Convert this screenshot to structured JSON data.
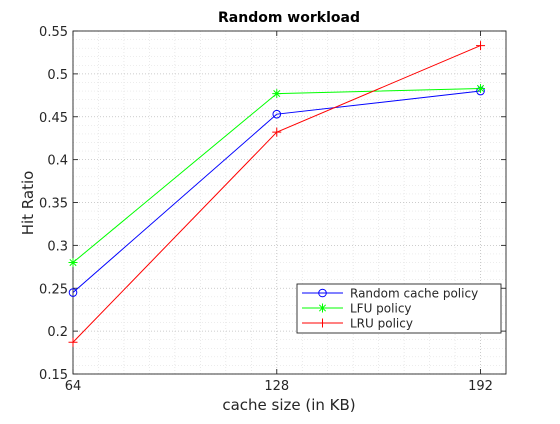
{
  "chart_data": {
    "type": "line",
    "title": "Random workload",
    "xlabel": "cache size (in KB)",
    "ylabel": "Hit Ratio",
    "x": [
      64,
      128,
      192
    ],
    "xlim": [
      64,
      200
    ],
    "ylim": [
      0.15,
      0.55
    ],
    "x_ticks": [
      64,
      128,
      192
    ],
    "x_tick_labels": [
      "64",
      "128",
      "192"
    ],
    "y_ticks": [
      0.15,
      0.2,
      0.25,
      0.3,
      0.35,
      0.4,
      0.45,
      0.5,
      0.55
    ],
    "y_tick_labels": [
      "0.15",
      "0.2",
      "0.25",
      "0.3",
      "0.35",
      "0.4",
      "0.45",
      "0.5",
      "0.55"
    ],
    "grid": true,
    "grid_style": "dotted",
    "minor_grid": true,
    "legend_position": "lower-right",
    "series": [
      {
        "name": "Random cache policy",
        "values": [
          0.245,
          0.453,
          0.48
        ],
        "color": "#0000ff",
        "marker": "circle"
      },
      {
        "name": "LFU policy",
        "values": [
          0.28,
          0.477,
          0.483
        ],
        "color": "#00ff00",
        "marker": "asterisk"
      },
      {
        "name": "LRU policy",
        "values": [
          0.187,
          0.432,
          0.533
        ],
        "color": "#ff0000",
        "marker": "plus"
      }
    ]
  }
}
